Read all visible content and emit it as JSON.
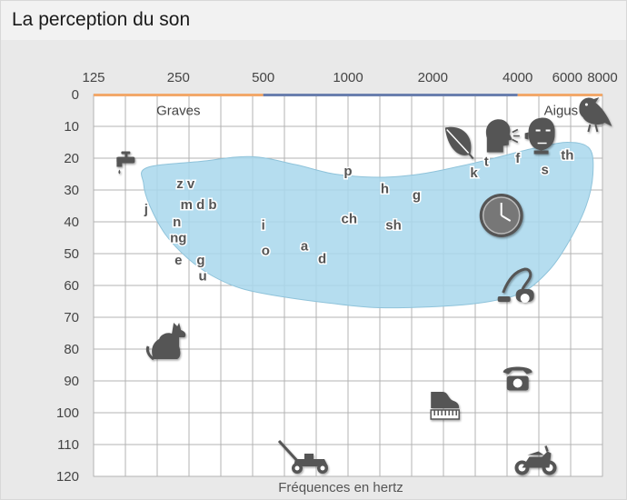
{
  "page": {
    "title": "La perception du son"
  },
  "chart_data": {
    "type": "scatter",
    "title": "",
    "xlabel": "Fréquences en hertz",
    "ylabel": "",
    "x_scale": "log2",
    "x_ticks": [
      125,
      250,
      500,
      1000,
      2000,
      4000,
      6000,
      8000
    ],
    "x_tick_labels": [
      "125",
      "250",
      "500",
      "1000",
      "2000",
      "4000",
      "6000",
      "8000"
    ],
    "y_ticks": [
      0,
      10,
      20,
      30,
      40,
      50,
      60,
      70,
      80,
      90,
      100,
      110,
      120
    ],
    "ylim": [
      0,
      120
    ],
    "y_inverted": true,
    "grid": true,
    "region_labels": [
      {
        "text": "Graves",
        "x": 250,
        "y": 5
      },
      {
        "text": "Aigus",
        "x": 5700,
        "y": 5
      }
    ],
    "band": [
      {
        "from": 125,
        "to": 500,
        "color": "#f2a86a"
      },
      {
        "from": 500,
        "to": 4000,
        "color": "#6a7fae"
      },
      {
        "from": 4000,
        "to": 8000,
        "color": "#f2a86a"
      }
    ],
    "speech_area": {
      "color": "#a8d7ec",
      "outline": [
        [
          193,
          23
        ],
        [
          300,
          21
        ],
        [
          450,
          19.5
        ],
        [
          650,
          22
        ],
        [
          900,
          25
        ],
        [
          1300,
          26
        ],
        [
          1800,
          25
        ],
        [
          2500,
          22.5
        ],
        [
          3300,
          20
        ],
        [
          4500,
          17
        ],
        [
          6000,
          15
        ],
        [
          7200,
          17
        ],
        [
          7400,
          25
        ],
        [
          7000,
          35
        ],
        [
          6100,
          46
        ],
        [
          5200,
          55
        ],
        [
          4200,
          62
        ],
        [
          3200,
          65
        ],
        [
          2200,
          66.5
        ],
        [
          1300,
          67
        ],
        [
          850,
          65.5
        ],
        [
          580,
          63.5
        ],
        [
          420,
          61
        ],
        [
          330,
          57
        ],
        [
          270,
          51.5
        ],
        [
          225,
          44
        ],
        [
          198,
          35
        ],
        [
          188,
          28
        ]
      ]
    },
    "phonemes": [
      {
        "label": "z v",
        "x": 265,
        "y": 28
      },
      {
        "label": "j",
        "x": 192,
        "y": 36
      },
      {
        "label": "m d b",
        "x": 295,
        "y": 34.5
      },
      {
        "label": "n",
        "x": 247,
        "y": 40
      },
      {
        "label": "ng",
        "x": 250,
        "y": 45
      },
      {
        "label": "e",
        "x": 250,
        "y": 52
      },
      {
        "label": "g",
        "x": 300,
        "y": 52
      },
      {
        "label": "u",
        "x": 305,
        "y": 57
      },
      {
        "label": "i",
        "x": 500,
        "y": 41
      },
      {
        "label": "o",
        "x": 510,
        "y": 49
      },
      {
        "label": "a",
        "x": 700,
        "y": 47.5
      },
      {
        "label": "d",
        "x": 810,
        "y": 51.5
      },
      {
        "label": "p",
        "x": 1000,
        "y": 24
      },
      {
        "label": "h",
        "x": 1350,
        "y": 29.5
      },
      {
        "label": "g",
        "x": 1750,
        "y": 31.5
      },
      {
        "label": "ch",
        "x": 1010,
        "y": 39
      },
      {
        "label": "sh",
        "x": 1450,
        "y": 41
      },
      {
        "label": "k",
        "x": 2800,
        "y": 24.5
      },
      {
        "label": "t",
        "x": 3100,
        "y": 21
      },
      {
        "label": "f",
        "x": 4000,
        "y": 20
      },
      {
        "label": "s",
        "x": 5000,
        "y": 23.5
      },
      {
        "label": "th",
        "x": 6000,
        "y": 19
      }
    ],
    "sound_icons": [
      {
        "icon": "faucet-icon",
        "x": 165,
        "y": 21
      },
      {
        "icon": "leaf-icon",
        "x": 2450,
        "y": 15
      },
      {
        "icon": "whispering-head-icon",
        "x": 3400,
        "y": 13
      },
      {
        "icon": "listening-head-icon",
        "x": 4850,
        "y": 13
      },
      {
        "icon": "bird-icon",
        "x": 7450,
        "y": 6
      },
      {
        "icon": "clock-icon",
        "x": 3500,
        "y": 38
      },
      {
        "icon": "vacuum-cleaner-icon",
        "x": 4000,
        "y": 60
      },
      {
        "icon": "dog-icon",
        "x": 230,
        "y": 78
      },
      {
        "icon": "telephone-icon",
        "x": 4000,
        "y": 89
      },
      {
        "icon": "piano-icon",
        "x": 2200,
        "y": 98
      },
      {
        "icon": "lawn-mower-icon",
        "x": 700,
        "y": 114
      },
      {
        "icon": "motorcycle-icon",
        "x": 4600,
        "y": 115
      }
    ],
    "colors": {
      "grid": "#b3b3b3",
      "plot_background": "#ffffff",
      "icon": "#555555",
      "speech_area_stroke": "#8fc3da"
    }
  }
}
